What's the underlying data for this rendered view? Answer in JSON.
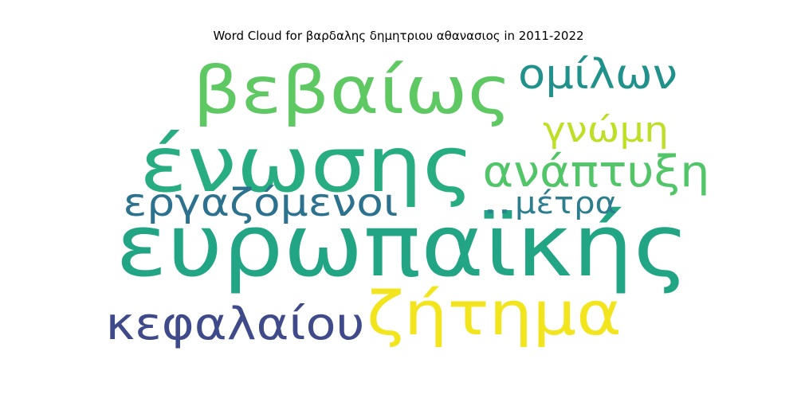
{
  "chart_data": {
    "type": "wordcloud",
    "title": "Word Cloud for βαρδαλης δημητριου αθανασιος in 2011-2022",
    "words": [
      {
        "text": "ευρωπαϊκής",
        "weight": 100,
        "color": "#21A585"
      },
      {
        "text": "ένωσης",
        "weight": 88,
        "color": "#27AD81"
      },
      {
        "text": "βεβαίως",
        "weight": 67,
        "color": "#5EC962"
      },
      {
        "text": "ζήτημα",
        "weight": 60,
        "color": "#F2E51D"
      },
      {
        "text": "κεφαλαίου",
        "weight": 48,
        "color": "#3E4A89"
      },
      {
        "text": "ανάπτυξη",
        "weight": 44,
        "color": "#52C569"
      },
      {
        "text": "ομίλων",
        "weight": 42,
        "color": "#21918C"
      },
      {
        "text": "εργαζόμενοι",
        "weight": 41,
        "color": "#2C728E"
      },
      {
        "text": "γνώμη",
        "weight": 37,
        "color": "#BDDF26"
      },
      {
        "text": "μέτρα",
        "weight": 32,
        "color": "#2C7E8E"
      },
      {
        "text": "..",
        "weight": 32,
        "color": "#25848E"
      }
    ]
  }
}
